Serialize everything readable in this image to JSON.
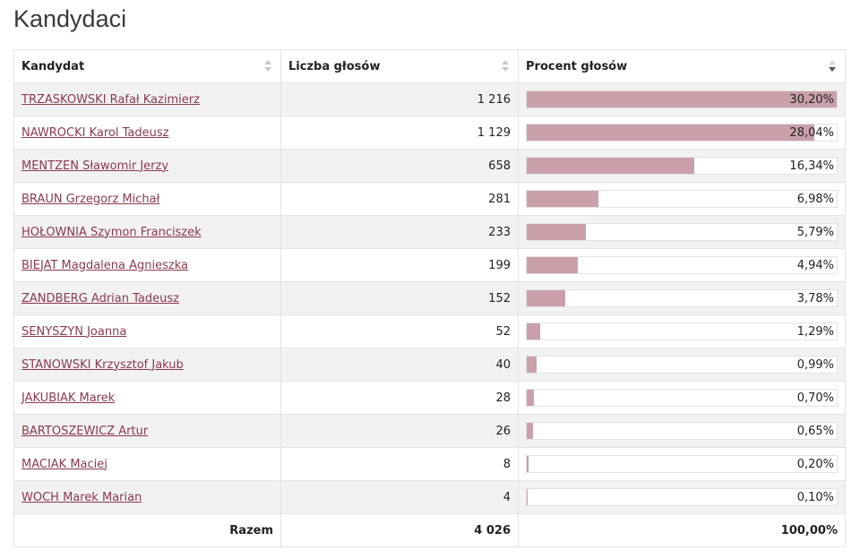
{
  "page": {
    "title": "Kandydaci"
  },
  "table": {
    "headers": {
      "candidate": "Kandydat",
      "votes": "Liczba głosów",
      "percent": "Procent głosów"
    },
    "rows": [
      {
        "name": "TRZASKOWSKI Rafał Kazimierz",
        "votes": "1 216",
        "percent": "30,20%",
        "share": 30.2
      },
      {
        "name": "NAWROCKI Karol Tadeusz",
        "votes": "1 129",
        "percent": "28,04%",
        "share": 28.04
      },
      {
        "name": "MENTZEN Sławomir Jerzy",
        "votes": "658",
        "percent": "16,34%",
        "share": 16.34
      },
      {
        "name": "BRAUN Grzegorz Michał",
        "votes": "281",
        "percent": "6,98%",
        "share": 6.98
      },
      {
        "name": "HOŁOWNIA Szymon Franciszek",
        "votes": "233",
        "percent": "5,79%",
        "share": 5.79
      },
      {
        "name": "BIEJAT Magdalena Agnieszka",
        "votes": "199",
        "percent": "4,94%",
        "share": 4.94
      },
      {
        "name": "ZANDBERG Adrian Tadeusz",
        "votes": "152",
        "percent": "3,78%",
        "share": 3.78
      },
      {
        "name": "SENYSZYN Joanna",
        "votes": "52",
        "percent": "1,29%",
        "share": 1.29
      },
      {
        "name": "STANOWSKI Krzysztof Jakub",
        "votes": "40",
        "percent": "0,99%",
        "share": 0.99
      },
      {
        "name": "JAKUBIAK Marek",
        "votes": "28",
        "percent": "0,70%",
        "share": 0.7
      },
      {
        "name": "BARTOSZEWICZ Artur",
        "votes": "26",
        "percent": "0,65%",
        "share": 0.65
      },
      {
        "name": "MACIAK Maciej",
        "votes": "8",
        "percent": "0,20%",
        "share": 0.2
      },
      {
        "name": "WOCH Marek Marian",
        "votes": "4",
        "percent": "0,10%",
        "share": 0.1
      }
    ],
    "total": {
      "label": "Razem",
      "votes": "4 026",
      "percent": "100,00%"
    },
    "sort": {
      "column": "percent",
      "direction": "desc"
    }
  },
  "colors": {
    "bar_fill": "#c9a0aa",
    "link": "#8a3a4e"
  }
}
